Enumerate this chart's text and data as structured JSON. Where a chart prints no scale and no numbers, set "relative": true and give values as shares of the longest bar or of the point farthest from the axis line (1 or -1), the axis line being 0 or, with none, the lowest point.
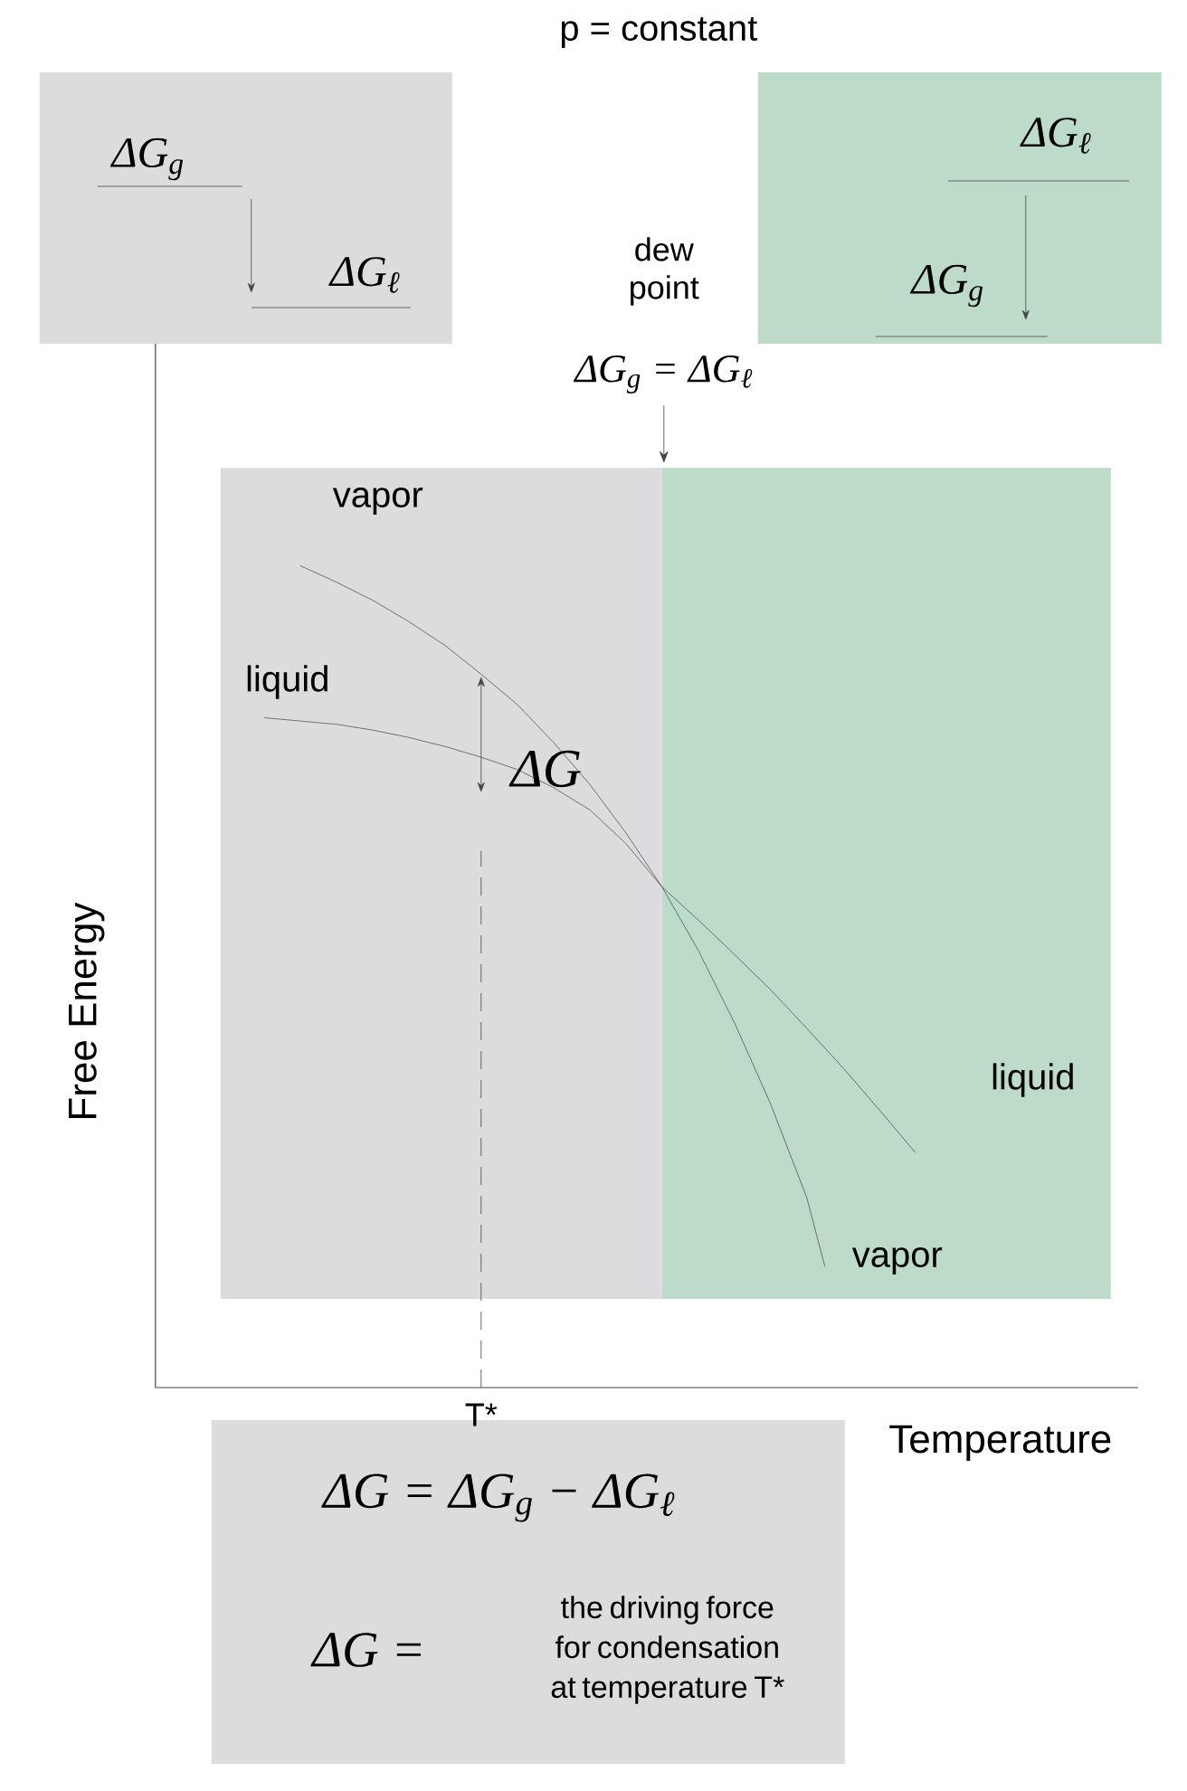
{
  "chart_data": {
    "type": "line",
    "title": "p = constant",
    "xlabel": "Temperature",
    "ylabel": "Free Energy",
    "relative": true,
    "categories": [
      null,
      null,
      null,
      null,
      null,
      null,
      null,
      null,
      null,
      null,
      null,
      null,
      null,
      null,
      null,
      null,
      null,
      null,
      null,
      null,
      null,
      null,
      null,
      null,
      null,
      null,
      null,
      null,
      null,
      null,
      null,
      null,
      null,
      null,
      null,
      null,
      null,
      null,
      null,
      null,
      null,
      null,
      null,
      null,
      null,
      null,
      null,
      null,
      null,
      null,
      null,
      null,
      null
    ],
    "series": [
      {
        "name": "vapor",
        "color": "#555555",
        "values": [
          null,
          null,
          null,
          null,
          null,
          null,
          1.0,
          null,
          0.98,
          null,
          0.958,
          null,
          0.932,
          null,
          0.903,
          null,
          0.868,
          null,
          0.831,
          null,
          0.785,
          null,
          0.734,
          null,
          0.675,
          null,
          0.609,
          null,
          0.532,
          null,
          0.444,
          null,
          0.345,
          null,
          0.231,
          0.147,
          null,
          null,
          null,
          null,
          null,
          null,
          null,
          null,
          null,
          null,
          null,
          null,
          null,
          null,
          null,
          null,
          null
        ]
      },
      {
        "name": "liquid",
        "color": "#555555",
        "values": [
          null,
          null,
          null,
          null,
          0.815,
          null,
          0.811,
          null,
          0.807,
          null,
          0.8,
          null,
          0.791,
          null,
          0.78,
          null,
          0.767,
          null,
          0.752,
          null,
          0.73,
          null,
          0.703,
          null,
          0.662,
          null,
          0.609,
          null,
          0.569,
          null,
          0.527,
          null,
          0.484,
          null,
          0.437,
          null,
          0.389,
          null,
          0.338,
          null,
          0.286,
          null,
          null,
          null,
          null,
          null,
          null,
          null,
          null,
          null,
          null,
          null,
          null
        ]
      }
    ],
    "annotations": [
      "dew point",
      "ΔG$_{g}$ = ΔG$_{ℓ}$",
      "ΔG",
      "liquid",
      "vapor",
      "ΔG$_{g}$",
      "ΔG$_{ℓ}$",
      "ΔG$_{ℓ}$",
      "ΔG$_{g}$",
      "ΔG = ΔG$_{g}$ − ΔG$_{ℓ}$",
      "ΔG =",
      "the driving force for condensation at temperature T*",
      "T*"
    ]
  }
}
